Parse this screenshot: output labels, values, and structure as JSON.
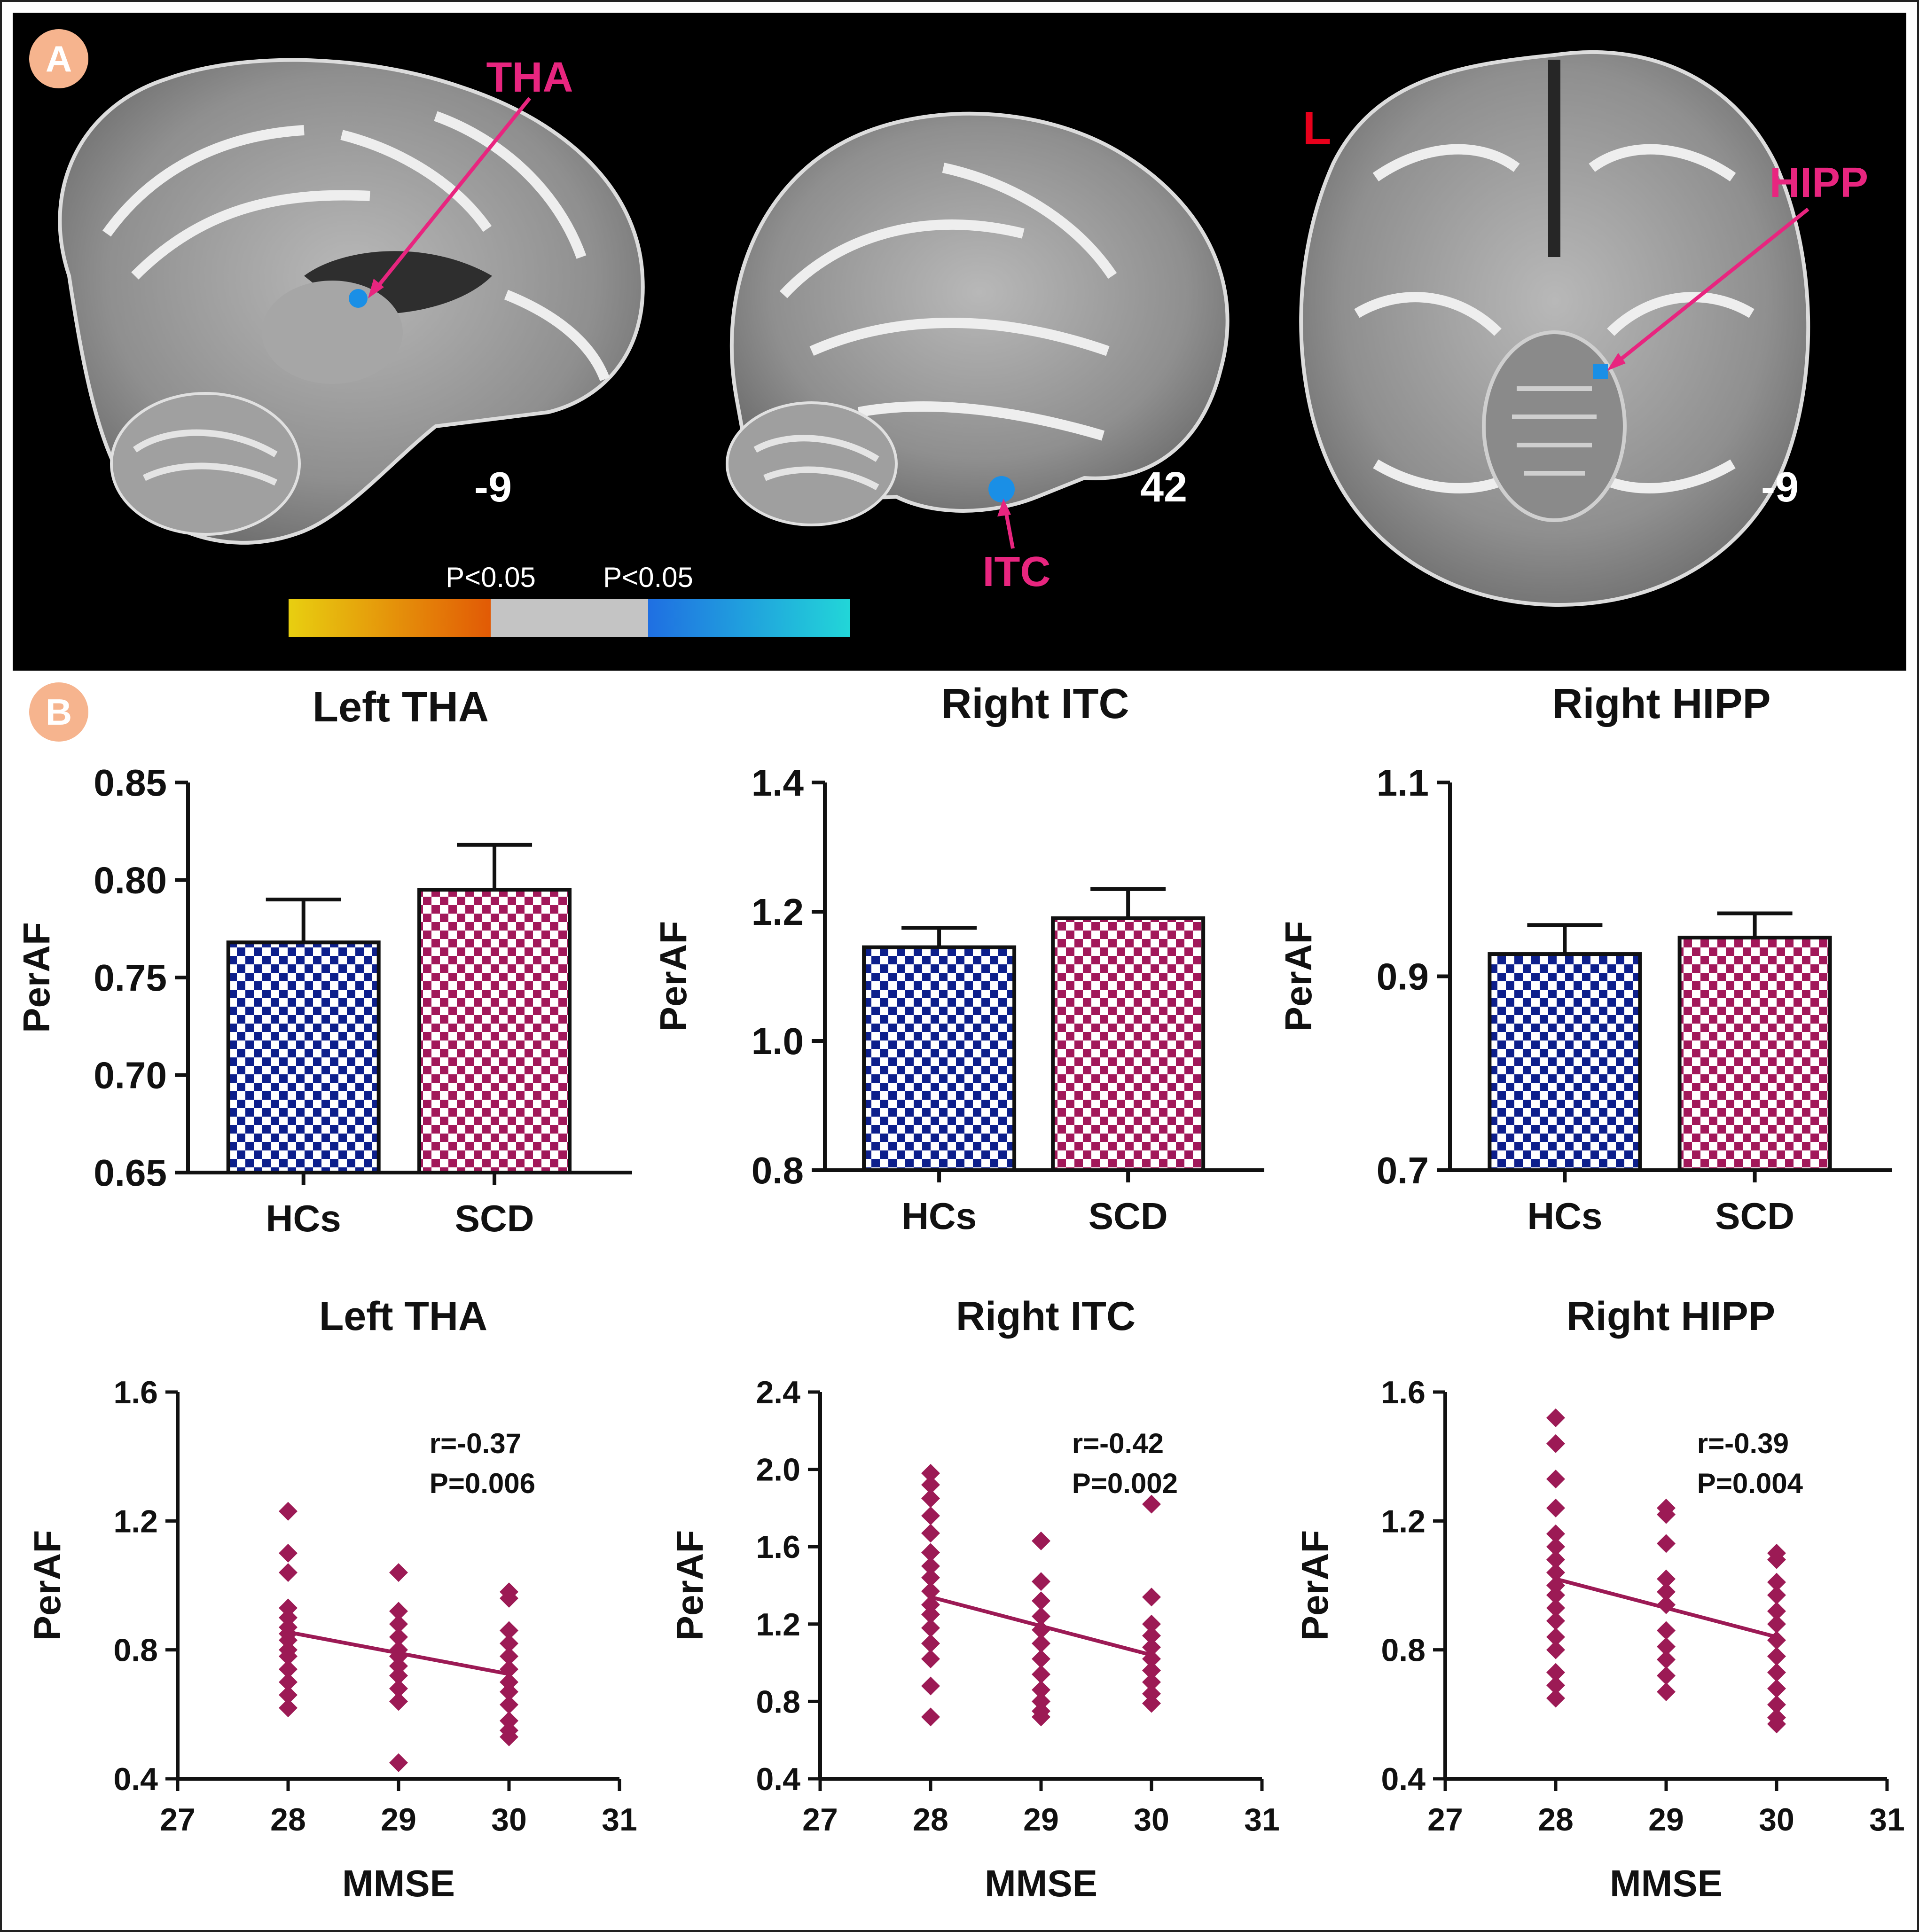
{
  "panels": {
    "a_label": "A",
    "b_label": "B"
  },
  "brain": {
    "labels": {
      "tha": "THA",
      "itc": "ITC",
      "hipp": "HIPP",
      "left": "L"
    },
    "coords": {
      "sagittal_left": "-9",
      "sagittal_right": "42",
      "axial": "-9"
    },
    "colorbar": {
      "left_label": "P<0.05",
      "right_label": "P<0.05"
    },
    "colors": {
      "label": "#e8257f",
      "marker": "#1a8fe6",
      "left_marker": "#e8001b"
    }
  },
  "colors": {
    "hc_check": "#0d1f8c",
    "scd_check": "#a2185a",
    "scatter": "#9c1a55"
  },
  "chart_data": [
    {
      "type": "bar",
      "title": "Left THA",
      "ylabel": "PerAF",
      "categories": [
        "HCs",
        "SCD"
      ],
      "values": [
        0.768,
        0.795
      ],
      "errors": [
        0.022,
        0.023
      ],
      "ylim": [
        0.65,
        0.85
      ],
      "ticks": [
        "0.65",
        "0.70",
        "0.75",
        "0.80",
        "0.85"
      ]
    },
    {
      "type": "bar",
      "title": "Right ITC",
      "ylabel": "PerAF",
      "categories": [
        "HCs",
        "SCD"
      ],
      "values": [
        1.145,
        1.19
      ],
      "errors": [
        0.03,
        0.045
      ],
      "ylim": [
        0.8,
        1.4
      ],
      "ticks": [
        "0.8",
        "1.0",
        "1.2",
        "1.4"
      ]
    },
    {
      "type": "bar",
      "title": "Right HIPP",
      "ylabel": "PerAF",
      "categories": [
        "HCs",
        "SCD"
      ],
      "values": [
        0.923,
        0.94
      ],
      "errors": [
        0.03,
        0.025
      ],
      "ylim": [
        0.7,
        1.1
      ],
      "ticks": [
        "0.7",
        "0.9",
        "1.1"
      ]
    },
    {
      "type": "scatter",
      "title": "Left THA",
      "xlabel": "MMSE",
      "ylabel": "PerAF",
      "xlim": [
        27,
        31
      ],
      "ylim": [
        0.4,
        1.6
      ],
      "r_text": "r=-0.37",
      "p_text": "P=0.006",
      "xticks": [
        "27",
        "28",
        "29",
        "30",
        "31"
      ],
      "yticks": [
        "0.4",
        "0.8",
        "1.2",
        "1.6"
      ],
      "fit": [
        [
          28,
          0.855
        ],
        [
          30,
          0.725
        ]
      ],
      "points": [
        [
          28,
          1.23
        ],
        [
          28,
          1.1
        ],
        [
          28,
          1.04
        ],
        [
          28,
          0.93
        ],
        [
          28,
          0.9
        ],
        [
          28,
          0.87
        ],
        [
          28,
          0.85
        ],
        [
          28,
          0.83
        ],
        [
          28,
          0.8
        ],
        [
          28,
          0.78
        ],
        [
          28,
          0.74
        ],
        [
          28,
          0.7
        ],
        [
          28,
          0.66
        ],
        [
          28,
          0.62
        ],
        [
          29,
          1.04
        ],
        [
          29,
          0.92
        ],
        [
          29,
          0.88
        ],
        [
          29,
          0.84
        ],
        [
          29,
          0.8
        ],
        [
          29,
          0.78
        ],
        [
          29,
          0.75
        ],
        [
          29,
          0.72
        ],
        [
          29,
          0.68
        ],
        [
          29,
          0.64
        ],
        [
          29,
          0.45
        ],
        [
          30,
          0.98
        ],
        [
          30,
          0.96
        ],
        [
          30,
          0.86
        ],
        [
          30,
          0.82
        ],
        [
          30,
          0.78
        ],
        [
          30,
          0.74
        ],
        [
          30,
          0.7
        ],
        [
          30,
          0.67
        ],
        [
          30,
          0.63
        ],
        [
          30,
          0.58
        ],
        [
          30,
          0.55
        ],
        [
          30,
          0.53
        ]
      ]
    },
    {
      "type": "scatter",
      "title": "Right ITC",
      "xlabel": "MMSE",
      "ylabel": "PerAF",
      "xlim": [
        27,
        31
      ],
      "ylim": [
        0.4,
        2.4
      ],
      "r_text": "r=-0.42",
      "p_text": "P=0.002",
      "xticks": [
        "27",
        "28",
        "29",
        "30",
        "31"
      ],
      "yticks": [
        "0.4",
        "0.8",
        "1.2",
        "1.6",
        "2.0",
        "2.4"
      ],
      "fit": [
        [
          28,
          1.34
        ],
        [
          30,
          1.04
        ]
      ],
      "points": [
        [
          28,
          1.98
        ],
        [
          28,
          1.92
        ],
        [
          28,
          1.85
        ],
        [
          28,
          1.76
        ],
        [
          28,
          1.67
        ],
        [
          28,
          1.57
        ],
        [
          28,
          1.5
        ],
        [
          28,
          1.44
        ],
        [
          28,
          1.37
        ],
        [
          28,
          1.3
        ],
        [
          28,
          1.25
        ],
        [
          28,
          1.18
        ],
        [
          28,
          1.1
        ],
        [
          28,
          1.02
        ],
        [
          28,
          0.88
        ],
        [
          28,
          0.72
        ],
        [
          29,
          1.63
        ],
        [
          29,
          1.42
        ],
        [
          29,
          1.32
        ],
        [
          29,
          1.24
        ],
        [
          29,
          1.17
        ],
        [
          29,
          1.1
        ],
        [
          29,
          1.02
        ],
        [
          29,
          0.94
        ],
        [
          29,
          0.86
        ],
        [
          29,
          0.8
        ],
        [
          29,
          0.75
        ],
        [
          29,
          0.72
        ],
        [
          30,
          1.82
        ],
        [
          30,
          1.34
        ],
        [
          30,
          1.2
        ],
        [
          30,
          1.14
        ],
        [
          30,
          1.08
        ],
        [
          30,
          1.02
        ],
        [
          30,
          0.96
        ],
        [
          30,
          0.9
        ],
        [
          30,
          0.84
        ],
        [
          30,
          0.79
        ]
      ]
    },
    {
      "type": "scatter",
      "title": "Right HIPP",
      "xlabel": "MMSE",
      "ylabel": "PerAF",
      "xlim": [
        27,
        31
      ],
      "ylim": [
        0.4,
        1.6
      ],
      "r_text": "r=-0.39",
      "p_text": "P=0.004",
      "xticks": [
        "27",
        "28",
        "29",
        "30",
        "31"
      ],
      "yticks": [
        "0.4",
        "0.8",
        "1.2",
        "1.6"
      ],
      "fit": [
        [
          28,
          1.02
        ],
        [
          30,
          0.84
        ]
      ],
      "points": [
        [
          28,
          1.52
        ],
        [
          28,
          1.44
        ],
        [
          28,
          1.33
        ],
        [
          28,
          1.24
        ],
        [
          28,
          1.16
        ],
        [
          28,
          1.12
        ],
        [
          28,
          1.08
        ],
        [
          28,
          1.04
        ],
        [
          28,
          1.0
        ],
        [
          28,
          0.97
        ],
        [
          28,
          0.93
        ],
        [
          28,
          0.89
        ],
        [
          28,
          0.84
        ],
        [
          28,
          0.8
        ],
        [
          28,
          0.73
        ],
        [
          28,
          0.69
        ],
        [
          28,
          0.65
        ],
        [
          29,
          1.24
        ],
        [
          29,
          1.22
        ],
        [
          29,
          1.13
        ],
        [
          29,
          1.02
        ],
        [
          29,
          0.98
        ],
        [
          29,
          0.94
        ],
        [
          29,
          0.86
        ],
        [
          29,
          0.81
        ],
        [
          29,
          0.77
        ],
        [
          29,
          0.72
        ],
        [
          29,
          0.67
        ],
        [
          30,
          1.1
        ],
        [
          30,
          1.08
        ],
        [
          30,
          1.01
        ],
        [
          30,
          0.97
        ],
        [
          30,
          0.92
        ],
        [
          30,
          0.88
        ],
        [
          30,
          0.83
        ],
        [
          30,
          0.78
        ],
        [
          30,
          0.73
        ],
        [
          30,
          0.68
        ],
        [
          30,
          0.63
        ],
        [
          30,
          0.59
        ],
        [
          30,
          0.57
        ]
      ]
    }
  ]
}
